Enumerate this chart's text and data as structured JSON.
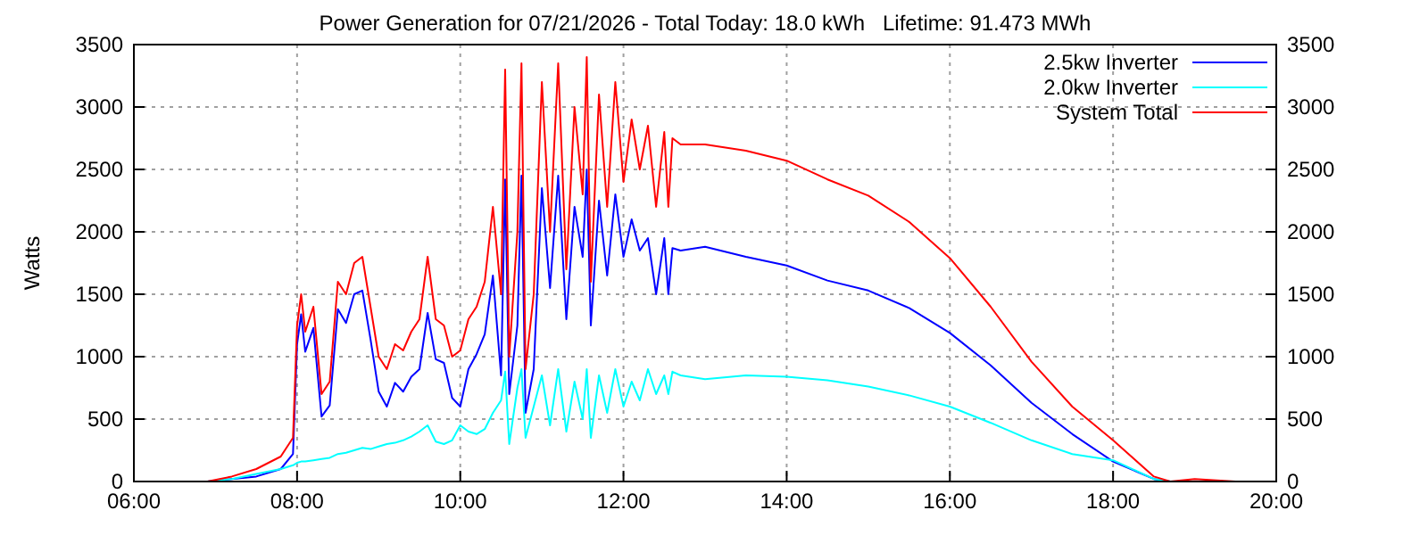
{
  "chart_data": {
    "type": "line",
    "title": "Power Generation for 07/21/2026 - Total Today: 18.0 kWh   Lifetime: 91.473 MWh",
    "ylabel": "Watts",
    "x": [
      6.9,
      7.2,
      7.5,
      7.8,
      7.95,
      8.0,
      8.05,
      8.1,
      8.2,
      8.3,
      8.4,
      8.5,
      8.6,
      8.7,
      8.8,
      8.9,
      9.0,
      9.1,
      9.2,
      9.3,
      9.4,
      9.5,
      9.6,
      9.7,
      9.8,
      9.9,
      10.0,
      10.1,
      10.2,
      10.3,
      10.4,
      10.5,
      10.55,
      10.6,
      10.7,
      10.75,
      10.8,
      10.9,
      11.0,
      11.1,
      11.2,
      11.3,
      11.4,
      11.5,
      11.55,
      11.6,
      11.7,
      11.8,
      11.9,
      12.0,
      12.1,
      12.2,
      12.3,
      12.4,
      12.5,
      12.55,
      12.6,
      12.7,
      13.0,
      13.5,
      14.0,
      14.5,
      15.0,
      15.5,
      16.0,
      16.5,
      17.0,
      17.5,
      18.0,
      18.5,
      18.7,
      19.0,
      19.5
    ],
    "series": [
      {
        "name": "2.5kw Inverter",
        "color": "#0000ff",
        "values": [
          0,
          20,
          40,
          100,
          220,
          1100,
          1340,
          1040,
          1230,
          520,
          610,
          1380,
          1270,
          1500,
          1530,
          1140,
          720,
          600,
          790,
          720,
          840,
          900,
          1350,
          980,
          950,
          670,
          600,
          900,
          1020,
          1180,
          1650,
          850,
          2420,
          700,
          1250,
          2450,
          550,
          900,
          2350,
          1550,
          2450,
          1300,
          2200,
          1800,
          2500,
          1250,
          2250,
          1650,
          2300,
          1800,
          2100,
          1850,
          1950,
          1500,
          1950,
          1500,
          1870,
          1850,
          1880,
          1800,
          1730,
          1610,
          1530,
          1390,
          1190,
          930,
          630,
          380,
          160,
          20,
          0,
          null,
          null
        ]
      },
      {
        "name": "2.0kw Inverter",
        "color": "#00ffff",
        "values": [
          0,
          20,
          60,
          100,
          130,
          150,
          160,
          160,
          170,
          180,
          190,
          220,
          230,
          250,
          270,
          260,
          280,
          300,
          310,
          330,
          360,
          400,
          450,
          320,
          300,
          330,
          450,
          400,
          380,
          420,
          550,
          650,
          880,
          300,
          750,
          900,
          350,
          600,
          850,
          450,
          900,
          400,
          800,
          500,
          900,
          350,
          850,
          550,
          900,
          600,
          800,
          650,
          900,
          700,
          850,
          700,
          880,
          850,
          820,
          850,
          840,
          810,
          760,
          690,
          600,
          470,
          330,
          220,
          170,
          20,
          0,
          0,
          0
        ]
      },
      {
        "name": "System Total",
        "color": "#ff0000",
        "values": [
          0,
          40,
          100,
          200,
          350,
          1250,
          1500,
          1200,
          1400,
          700,
          800,
          1600,
          1500,
          1750,
          1800,
          1400,
          1000,
          900,
          1100,
          1050,
          1200,
          1300,
          1800,
          1300,
          1250,
          1000,
          1050,
          1300,
          1400,
          1600,
          2200,
          1500,
          3300,
          1000,
          2000,
          3350,
          900,
          1500,
          3200,
          2000,
          3350,
          1700,
          3000,
          2300,
          3400,
          1600,
          3100,
          2200,
          3200,
          2400,
          2900,
          2500,
          2850,
          2200,
          2800,
          2200,
          2750,
          2700,
          2700,
          2650,
          2570,
          2420,
          2290,
          2080,
          1790,
          1400,
          960,
          600,
          330,
          40,
          0,
          20,
          0
        ]
      }
    ],
    "xlim": [
      6,
      20
    ],
    "xticks": [
      {
        "value": 6,
        "label": "06:00"
      },
      {
        "value": 8,
        "label": "08:00"
      },
      {
        "value": 10,
        "label": "10:00"
      },
      {
        "value": 12,
        "label": "12:00"
      },
      {
        "value": 14,
        "label": "14:00"
      },
      {
        "value": 16,
        "label": "16:00"
      },
      {
        "value": 18,
        "label": "18:00"
      },
      {
        "value": 20,
        "label": "20:00"
      }
    ],
    "ylim": [
      0,
      3500
    ],
    "yticks": [
      0,
      500,
      1000,
      1500,
      2000,
      2500,
      3000,
      3500
    ],
    "y2lim": [
      0,
      3500
    ],
    "y2ticks": [
      0,
      500,
      1000,
      1500,
      2000,
      2500,
      3000,
      3500
    ],
    "grid": true,
    "legend": "top right",
    "line_style": "solid"
  }
}
